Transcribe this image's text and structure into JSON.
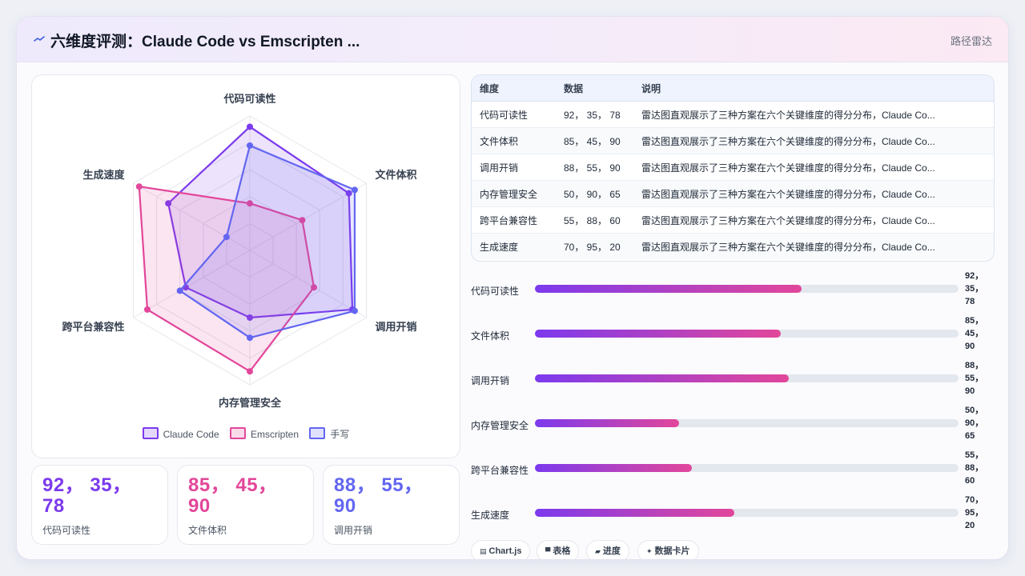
{
  "header": {
    "title": "六维度评测：Claude Code vs Emscripten ...",
    "subtitle": "路径雷达",
    "logo_icon": "spark-icon"
  },
  "chart_data": {
    "type": "radar",
    "axes": [
      "代码可读性",
      "文件体积",
      "调用开销",
      "内存管理安全",
      "跨平台兼容性",
      "生成速度"
    ],
    "r_range": [
      0,
      100
    ],
    "series": [
      {
        "name": "Claude Code",
        "values": [
          92,
          85,
          88,
          50,
          55,
          70
        ],
        "color": "#7c3aed"
      },
      {
        "name": "Emscripten",
        "values": [
          35,
          45,
          55,
          90,
          88,
          95
        ],
        "color": "#e2479a"
      },
      {
        "name": "手写",
        "values": [
          78,
          90,
          90,
          65,
          60,
          20
        ],
        "color": "#6366f1"
      }
    ],
    "legend_position": "bottom"
  },
  "stats": [
    {
      "value": "92， 35， 78",
      "label": "代码可读性",
      "color": "#7c3aed"
    },
    {
      "value": "85， 45， 90",
      "label": "文件体积",
      "color": "#e2479a"
    },
    {
      "value": "88， 55， 90",
      "label": "调用开销",
      "color": "#6366f1"
    }
  ],
  "table": {
    "headers": [
      "维度",
      "数据",
      "说明"
    ],
    "rows": [
      [
        "代码可读性",
        "92， 35， 78",
        "雷达图直观展示了三种方案在六个关键维度的得分分布，Claude Co..."
      ],
      [
        "文件体积",
        "85， 45， 90",
        "雷达图直观展示了三种方案在六个关键维度的得分分布，Claude Co..."
      ],
      [
        "调用开销",
        "88， 55， 90",
        "雷达图直观展示了三种方案在六个关键维度的得分分布，Claude Co..."
      ],
      [
        "内存管理安全",
        "50， 90， 65",
        "雷达图直观展示了三种方案在六个关键维度的得分分布，Claude Co..."
      ],
      [
        "跨平台兼容性",
        "55， 88， 60",
        "雷达图直观展示了三种方案在六个关键维度的得分分布，Claude Co..."
      ],
      [
        "生成速度",
        "70， 95， 20",
        "雷达图直观展示了三种方案在六个关键维度的得分分布，Claude Co..."
      ]
    ]
  },
  "progress": [
    {
      "label": "代码可读性",
      "value_lines": [
        "92，",
        "35，",
        "78"
      ],
      "fraction": 0.63
    },
    {
      "label": "文件体积",
      "value_lines": [
        "85，",
        "45，",
        "90"
      ],
      "fraction": 0.58
    },
    {
      "label": "调用开销",
      "value_lines": [
        "88，",
        "55，",
        "90"
      ],
      "fraction": 0.6
    },
    {
      "label": "内存管理安全",
      "value_lines": [
        "50，",
        "90，",
        "65"
      ],
      "fraction": 0.34
    },
    {
      "label": "跨平台兼容性",
      "value_lines": [
        "55，",
        "88，",
        "60"
      ],
      "fraction": 0.37
    },
    {
      "label": "生成速度",
      "value_lines": [
        "70，",
        "95，",
        "20"
      ],
      "fraction": 0.47
    }
  ],
  "chips": [
    {
      "label": "Chart.js",
      "icon": "chart-icon"
    },
    {
      "label": "表格",
      "icon": "table-icon"
    },
    {
      "label": "进度",
      "icon": "progress-icon"
    },
    {
      "label": "数据卡片",
      "icon": "sparkle-icon"
    }
  ]
}
